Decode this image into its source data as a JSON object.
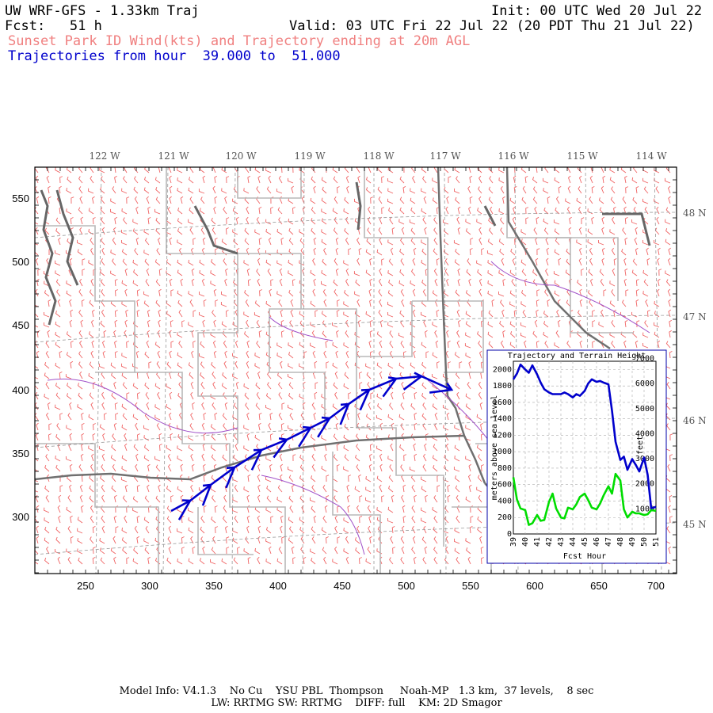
{
  "header": {
    "title": "UW WRF-GFS - 1.33km Traj",
    "init": "Init: 00 UTC Wed 20 Jul 22",
    "fcst": "Fcst:   51 h",
    "valid": "Valid: 03 UTC Fri 22 Jul 22 (20 PDT Thu 21 Jul 22)",
    "subtitle": "Sunset Park ID Wind(kts) and Trajectory ending at 20m AGL",
    "traj_range": "Trajectories from hour  39.000 to  51.000"
  },
  "map": {
    "lon_labels": [
      "122 W",
      "121 W",
      "120 W",
      "119 W",
      "118 W",
      "117 W",
      "116 W",
      "115 W",
      "114 W"
    ],
    "lat_labels": [
      "48 N",
      "47 N",
      "46 N",
      "45 N"
    ],
    "y_ticks": [
      "550",
      "500",
      "450",
      "400",
      "350",
      "300"
    ],
    "x_ticks": [
      "250",
      "300",
      "350",
      "400",
      "450",
      "500",
      "550",
      "600",
      "650",
      "700"
    ],
    "colors": {
      "wind": "#f06464",
      "border": "#808080",
      "county": "#b8b8b8",
      "water": "#a050c8",
      "trajectory": "#0000cc"
    }
  },
  "inset": {
    "title": "Trajectory and Terrain Height",
    "ylabel_left": "meters above sea level",
    "ylabel_right": "feet",
    "xlabel": "Fcst Hour",
    "left_ticks": [
      "2000",
      "1800",
      "1600",
      "1400",
      "1200",
      "1000",
      "800",
      "600",
      "400",
      "200",
      "0"
    ],
    "right_ticks": [
      "7000",
      "6000",
      "5000",
      "4000",
      "3000",
      "2000",
      "1000"
    ],
    "x_ticks": [
      "39",
      "40",
      "41",
      "42",
      "43",
      "44",
      "45",
      "46",
      "47",
      "48",
      "49",
      "50",
      "51"
    ],
    "colors": {
      "trajectory": "#0000cc",
      "terrain": "#00dd00"
    }
  },
  "chart_data": {
    "type": "line",
    "title": "Trajectory and Terrain Height",
    "xlabel": "Fcst Hour",
    "ylabel": "meters above sea level",
    "xlim": [
      39,
      51
    ],
    "ylim": [
      0,
      2100
    ],
    "series": [
      {
        "x": [
          39,
          39.3,
          39.6,
          40,
          40.3,
          40.6,
          41,
          41.3,
          41.6,
          42,
          42.3,
          42.6,
          43,
          43.3,
          43.6,
          44,
          44.3,
          44.6,
          45,
          45.3,
          45.6,
          46,
          46.3,
          46.6,
          47,
          47.3,
          47.6,
          48,
          48.3,
          48.6,
          49,
          49.3,
          49.6,
          50,
          50.3,
          50.6,
          51
        ],
        "values": [
          1880,
          1950,
          2060,
          2000,
          1960,
          2050,
          1940,
          1840,
          1760,
          1720,
          1700,
          1700,
          1700,
          1720,
          1700,
          1660,
          1700,
          1680,
          1740,
          1830,
          1880,
          1850,
          1860,
          1840,
          1820,
          1500,
          1120,
          900,
          940,
          780,
          910,
          840,
          760,
          930,
          720,
          310,
          330
        ]
      },
      {
        "x": [
          39,
          39.3,
          39.6,
          40,
          40.3,
          40.6,
          41,
          41.3,
          41.6,
          42,
          42.3,
          42.6,
          43,
          43.3,
          43.6,
          44,
          44.3,
          44.6,
          45,
          45.3,
          45.6,
          46,
          46.3,
          46.6,
          47,
          47.3,
          47.6,
          48,
          48.3,
          48.6,
          49,
          49.3,
          49.6,
          50,
          50.3,
          50.6,
          51
        ],
        "values": [
          690,
          420,
          310,
          290,
          110,
          130,
          230,
          160,
          170,
          390,
          490,
          310,
          200,
          190,
          320,
          300,
          360,
          450,
          490,
          410,
          320,
          300,
          370,
          470,
          580,
          490,
          730,
          650,
          300,
          200,
          270,
          250,
          250,
          230,
          240,
          290,
          280
        ]
      }
    ]
  },
  "footer": {
    "line1": "Model Info: V4.1.3    No Cu    YSU PBL  Thompson     Noah-MP   1.3 km,  37 levels,    8 sec",
    "line2": "LW: RRTMG SW: RRTMG    DIFF: full    KM: 2D Smagor"
  }
}
